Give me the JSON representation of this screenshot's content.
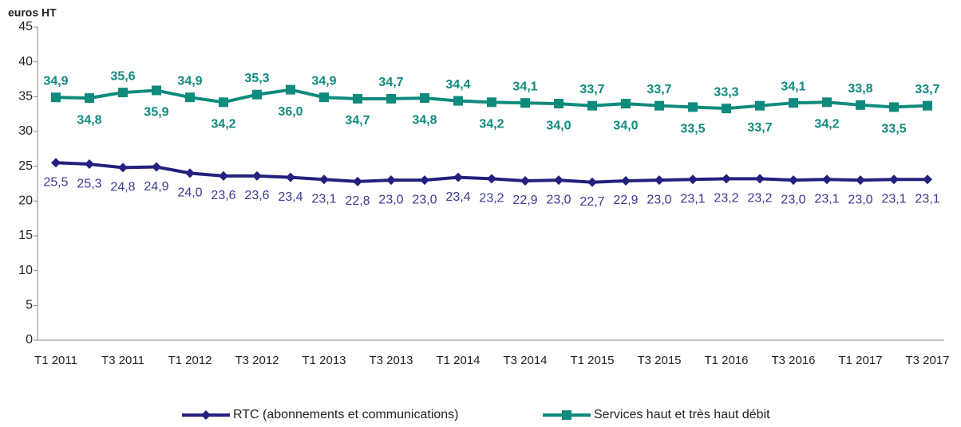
{
  "chart_data": {
    "type": "line",
    "y_label": "euros HT",
    "categories": [
      "T1 2011",
      null,
      "T3 2011",
      null,
      "T1 2012",
      null,
      "T3 2012",
      null,
      "T1 2013",
      null,
      "T3 2013",
      null,
      "T1 2014",
      null,
      "T3 2014",
      null,
      "T1 2015",
      null,
      "T3 2015",
      null,
      "T1 2016",
      null,
      "T3 2016",
      null,
      "T1 2017",
      null,
      "T3 2017"
    ],
    "series": [
      {
        "name": "RTC (abonnements et communications)",
        "color": "#23207f",
        "marker": "diamond",
        "values": [
          25.5,
          25.3,
          24.8,
          24.9,
          24.0,
          23.6,
          23.6,
          23.4,
          23.1,
          22.8,
          23.0,
          23.0,
          23.4,
          23.2,
          22.9,
          23.0,
          22.7,
          22.9,
          23.0,
          23.1,
          23.2,
          23.2,
          23.0,
          23.1,
          23.0,
          23.1,
          23.1
        ],
        "value_labels": [
          "25,5",
          "25,3",
          "24,8",
          "24,9",
          "24,0",
          "23,6",
          "23,6",
          "23,4",
          "23,1",
          "22,8",
          "23,0",
          "23,0",
          "23,4",
          "23,2",
          "22,9",
          "23,0",
          "22,7",
          "22,9",
          "23,0",
          "23,1",
          "23,2",
          "23,2",
          "23,0",
          "23,1",
          "23,0",
          "23,1",
          "23,1"
        ]
      },
      {
        "name": "Services haut et très haut débit",
        "color": "#0f8b7d",
        "marker": "square",
        "values": [
          34.9,
          34.8,
          35.6,
          35.9,
          34.9,
          34.2,
          35.3,
          36.0,
          34.9,
          34.7,
          34.7,
          34.8,
          34.4,
          34.2,
          34.1,
          34.0,
          33.7,
          34.0,
          33.7,
          33.5,
          33.3,
          33.7,
          34.1,
          34.2,
          33.8,
          33.5,
          33.7
        ],
        "value_labels": [
          "34,9",
          "34,8",
          "35,6",
          "35,9",
          "34,9",
          "34,2",
          "35,3",
          "36,0",
          "34,9",
          "34,7",
          "34,7",
          "34,8",
          "34,4",
          "34,2",
          "34,1",
          "34,0",
          "33,7",
          "34,0",
          "33,7",
          "33,5",
          "33,3",
          "33,7",
          "34,1",
          "34,2",
          "33,8",
          "33,5",
          "33,7"
        ]
      }
    ],
    "ylim": [
      0,
      45
    ],
    "yticks": [
      0,
      5,
      10,
      15,
      20,
      25,
      30,
      35,
      40,
      45
    ],
    "grid": false,
    "legend": "bottom"
  }
}
